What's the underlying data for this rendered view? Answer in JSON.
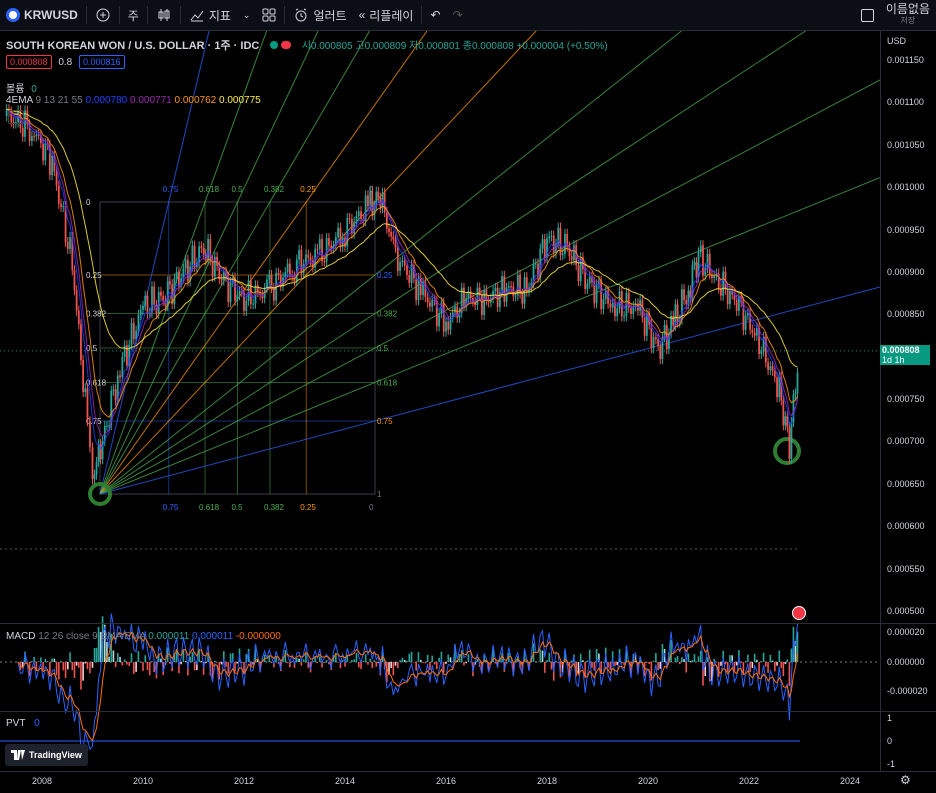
{
  "toolbar": {
    "symbol": "KRWUSD",
    "interval": "주",
    "indicators": "지표",
    "alert": "얼러트",
    "replay": "리플레이",
    "user_name": "이름없음",
    "user_sub": "저장"
  },
  "header": {
    "title": "SOUTH KOREAN WON / U.S. DOLLAR · 1주 · IDC",
    "ohlc": "시0.000805  고0.000809  저0.000801  종0.000808  +0.000004 (+0.50%)",
    "bid": "0.000808",
    "spread": "0.8",
    "ask": "0.000816",
    "volume_label": "볼륨",
    "volume_value": "0",
    "ema_label": "4EMA",
    "ema_params": "9 13 21 55",
    "ema_values": [
      "0.000780",
      "0.000771",
      "0.000762",
      "0.000775"
    ]
  },
  "colors": {
    "up": "#26a69a",
    "down": "#ef5350",
    "ema1": "#1e40ff",
    "ema2": "#9c27b0",
    "ema3": "#ff9800",
    "ema4": "#ffeb3b",
    "accent": "#2962ff",
    "last": "#089981"
  },
  "price_axis": {
    "currency": "USD",
    "labels": [
      "0.001150",
      "0.001100",
      "0.001050",
      "0.001000",
      "0.000950",
      "0.000900",
      "0.000850",
      "0.000750",
      "0.000700",
      "0.000650",
      "0.000600",
      "0.000550",
      "0.000500"
    ],
    "last_price": "0.000808",
    "last_time": "1d 1h"
  },
  "fib": {
    "top": [
      "0.75",
      "0.618",
      "0.5",
      "0.382",
      "0.25",
      "0"
    ],
    "bottom": [
      "0.75",
      "0.618",
      "0.5",
      "0.382",
      "0.25",
      "0"
    ],
    "left": [
      "0",
      "0.25",
      "0.382",
      "0.5",
      "0.618",
      "0.75"
    ],
    "right": [
      "0.25",
      "0.382",
      "0.5",
      "0.618",
      "0.75",
      "1"
    ]
  },
  "macd": {
    "label": "MACD",
    "params": "12 26 close 9 EMA EMA",
    "values": [
      "0.000011",
      "0.000011",
      "-0.000000"
    ],
    "axis": [
      "0.000020",
      "0.000000",
      "-0.000020"
    ]
  },
  "pvt": {
    "label": "PVT",
    "value": "0",
    "axis": [
      "1",
      "0",
      "-1"
    ]
  },
  "time_axis": [
    "2008",
    "2010",
    "2012",
    "2014",
    "2016",
    "2018",
    "2020",
    "2022",
    "2024"
  ],
  "watermark": "TradingView",
  "chart_data": {
    "type": "candlestick-line",
    "title": "SOUTH KOREAN WON / U.S. DOLLAR · 1주 · IDC",
    "x": [
      "2007.3",
      "2007.8",
      "2008.2",
      "2008.6",
      "2008.9",
      "2009.0",
      "2009.2",
      "2009.5",
      "2010.0",
      "2010.4",
      "2010.8",
      "2011.2",
      "2011.6",
      "2012.0",
      "2012.5",
      "2013.0",
      "2013.5",
      "2014.0",
      "2014.5",
      "2014.7",
      "2015.0",
      "2015.5",
      "2016.0",
      "2016.4",
      "2016.8",
      "2017.2",
      "2017.6",
      "2018.0",
      "2018.4",
      "2018.8",
      "2019.3",
      "2019.8",
      "2020.2",
      "2020.5",
      "2020.8",
      "2021.0",
      "2021.4",
      "2021.8",
      "2022.2",
      "2022.6",
      "2022.8",
      "2023.0"
    ],
    "close": [
      0.001085,
      0.00107,
      0.00103,
      0.00091,
      0.00072,
      0.00066,
      0.0007,
      0.00078,
      0.00086,
      0.00087,
      0.0009,
      0.00093,
      0.00089,
      0.00087,
      0.00088,
      0.00091,
      0.00092,
      0.00095,
      0.00098,
      0.00099,
      0.00092,
      0.00088,
      0.00084,
      0.00087,
      0.00087,
      0.00088,
      0.00088,
      0.00094,
      0.00093,
      0.00089,
      0.00086,
      0.00086,
      0.00081,
      0.00084,
      0.00088,
      0.00092,
      0.00089,
      0.00086,
      0.00082,
      0.00076,
      0.0007,
      0.000808
    ],
    "ylim": [
      0.0005,
      0.00116
    ]
  }
}
